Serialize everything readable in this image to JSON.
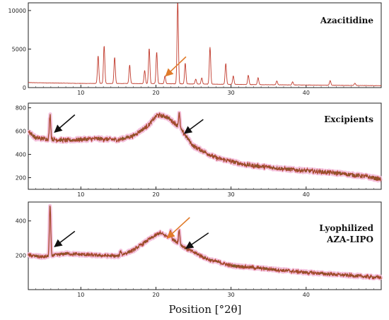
{
  "chart_data": {
    "type": "line",
    "xlabel": "Position [°2θ]",
    "xlim": [
      3,
      50
    ],
    "x_ticks": [
      10,
      20,
      30,
      40
    ],
    "colors": {
      "trace": "#c0392b",
      "trace_green": "#4a7a2a",
      "halo": "#f2b8d8",
      "black_arrow": "#111111",
      "orange_arrow": "#e07b2a"
    },
    "panels": [
      {
        "id": "azacitidine",
        "label": [
          "Azacitidine"
        ],
        "ylim": [
          0,
          11000
        ],
        "y_ticks": [
          0,
          5000,
          10000
        ],
        "y_tick_labels": [
          "0",
          "5000",
          "10000"
        ],
        "baseline": [
          [
            3,
            650
          ],
          [
            10,
            540
          ],
          [
            20,
            520
          ],
          [
            30,
            420
          ],
          [
            40,
            330
          ],
          [
            50,
            250
          ]
        ],
        "peaks": [
          {
            "x": 12.3,
            "y": 3600
          },
          {
            "x": 13.1,
            "y": 4900
          },
          {
            "x": 14.5,
            "y": 3400
          },
          {
            "x": 16.5,
            "y": 2400
          },
          {
            "x": 18.5,
            "y": 1700
          },
          {
            "x": 19.1,
            "y": 4600
          },
          {
            "x": 20.1,
            "y": 4100
          },
          {
            "x": 21.2,
            "y": 1000
          },
          {
            "x": 22.9,
            "y": 10700
          },
          {
            "x": 23.9,
            "y": 2700
          },
          {
            "x": 25.3,
            "y": 650
          },
          {
            "x": 26.1,
            "y": 800
          },
          {
            "x": 27.2,
            "y": 4800
          },
          {
            "x": 29.3,
            "y": 2700
          },
          {
            "x": 30.3,
            "y": 1100
          },
          {
            "x": 32.3,
            "y": 1200
          },
          {
            "x": 33.6,
            "y": 900
          },
          {
            "x": 36.1,
            "y": 500
          },
          {
            "x": 38.2,
            "y": 400
          },
          {
            "x": 43.2,
            "y": 600
          },
          {
            "x": 46.5,
            "y": 300
          }
        ],
        "arrows": [
          {
            "color": "orange",
            "from": [
              24.0,
              4000
            ],
            "to": [
              21.3,
              1500
            ]
          }
        ]
      },
      {
        "id": "excipients",
        "label": [
          "Excipients"
        ],
        "ylim": [
          100,
          840
        ],
        "y_ticks": [
          200,
          400,
          600,
          800
        ],
        "y_tick_labels": [
          "200",
          "400",
          "600",
          "800"
        ],
        "baseline": [
          [
            3,
            600
          ],
          [
            4,
            540
          ],
          [
            8,
            520
          ],
          [
            12,
            535
          ],
          [
            15,
            525
          ],
          [
            17,
            560
          ],
          [
            19,
            650
          ],
          [
            20.2,
            740
          ],
          [
            21.5,
            720
          ],
          [
            23,
            640
          ],
          [
            25,
            470
          ],
          [
            28,
            370
          ],
          [
            32,
            310
          ],
          [
            38,
            270
          ],
          [
            44,
            240
          ],
          [
            48,
            210
          ],
          [
            50,
            185
          ]
        ],
        "peaks": [
          {
            "x": 5.9,
            "y": 210
          },
          {
            "x": 23.1,
            "y": 120
          }
        ],
        "noise": 18,
        "arrows": [
          {
            "color": "black",
            "from": [
              9.2,
              740
            ],
            "to": [
              6.5,
              590
            ]
          },
          {
            "color": "black",
            "from": [
              26.3,
              700
            ],
            "to": [
              23.8,
              580
            ]
          }
        ]
      },
      {
        "id": "lyophilized",
        "label": [
          "Lyophilized",
          "AZA-LIPO"
        ],
        "ylim": [
          0,
          510
        ],
        "y_ticks": [
          200,
          400
        ],
        "y_tick_labels": [
          "200",
          "400"
        ],
        "baseline": [
          [
            3,
            200
          ],
          [
            5,
            190
          ],
          [
            8,
            210
          ],
          [
            12,
            200
          ],
          [
            15,
            195
          ],
          [
            17,
            230
          ],
          [
            19,
            290
          ],
          [
            20.5,
            330
          ],
          [
            22,
            300
          ],
          [
            24,
            240
          ],
          [
            27,
            175
          ],
          [
            30,
            140
          ],
          [
            35,
            120
          ],
          [
            40,
            100
          ],
          [
            45,
            85
          ],
          [
            50,
            70
          ]
        ],
        "peaks": [
          {
            "x": 5.9,
            "y": 290
          },
          {
            "x": 15.3,
            "y": 25
          },
          {
            "x": 22.0,
            "y": 40
          },
          {
            "x": 23.1,
            "y": 80
          }
        ],
        "noise": 10,
        "arrows": [
          {
            "color": "black",
            "from": [
              9.2,
              340
            ],
            "to": [
              6.5,
              250
            ]
          },
          {
            "color": "orange",
            "from": [
              24.5,
              420
            ],
            "to": [
              21.5,
              300
            ]
          },
          {
            "color": "black",
            "from": [
              27.0,
              330
            ],
            "to": [
              24.0,
              240
            ]
          }
        ]
      }
    ]
  }
}
